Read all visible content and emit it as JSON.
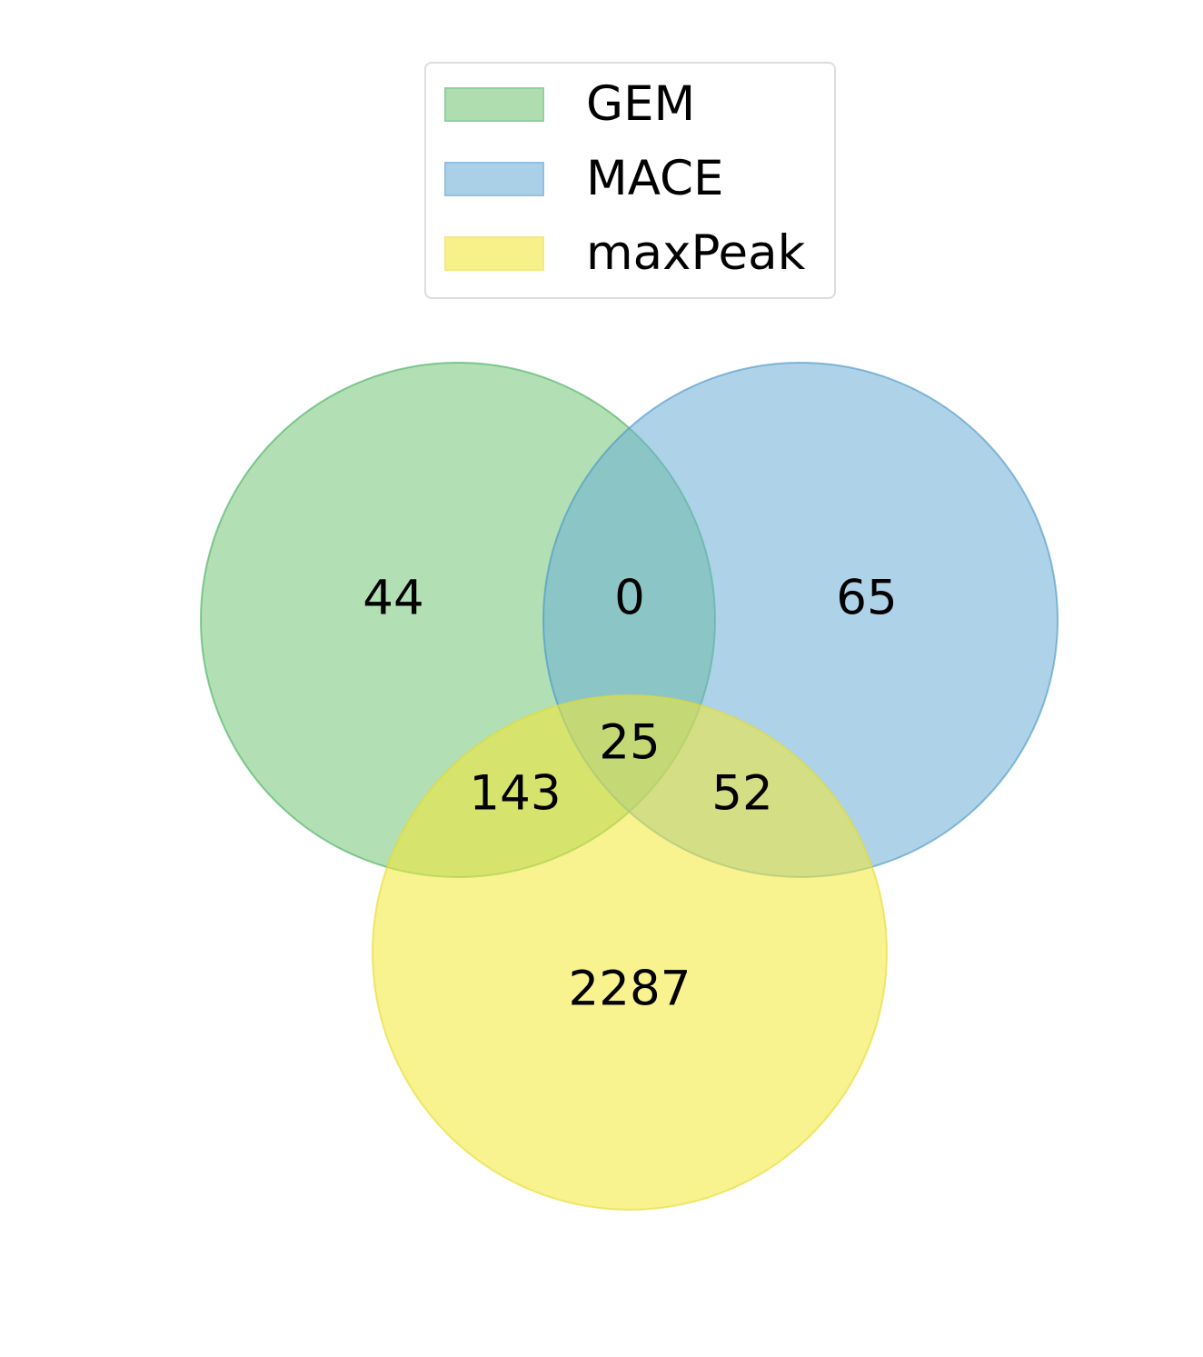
{
  "sets": [
    {
      "label": "GEM",
      "fill": "#74c476",
      "stroke": "#41ab5d"
    },
    {
      "label": "MACE",
      "fill": "#6baed6",
      "stroke": "#4292c6"
    },
    {
      "label": "maxPeak",
      "fill": "#f3e833",
      "stroke": "#e6db2c"
    }
  ],
  "regions": {
    "gem_only": "44",
    "gem_mace": "0",
    "mace_only": "65",
    "all_three": "25",
    "gem_maxpeak": "143",
    "mace_maxpeak": "52",
    "maxpeak_only": "2287"
  }
}
